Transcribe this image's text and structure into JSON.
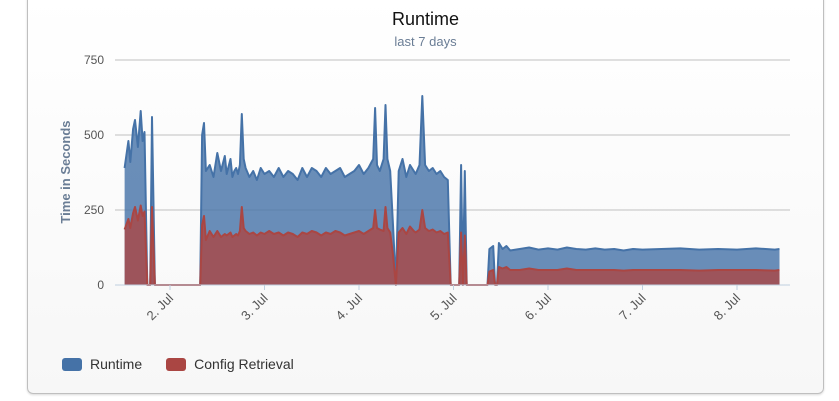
{
  "chart_data": {
    "type": "area",
    "title": "Runtime",
    "subtitle": "last 7 days",
    "xlabel": "",
    "ylabel": "Time in Seconds",
    "ylim": [
      0,
      750
    ],
    "yticks": [
      0,
      250,
      500,
      750
    ],
    "xlim": [
      1.5,
      8.5
    ],
    "xticks": [
      {
        "value": 2,
        "label": "2. Jul"
      },
      {
        "value": 3,
        "label": "3. Jul"
      },
      {
        "value": 4,
        "label": "4. Jul"
      },
      {
        "value": 5,
        "label": "5. Jul"
      },
      {
        "value": 6,
        "label": "6. Jul"
      },
      {
        "value": 7,
        "label": "7. Jul"
      },
      {
        "value": 8,
        "label": "8. Jul"
      }
    ],
    "stacked": true,
    "series": [
      {
        "name": "Config Retrieval",
        "color": "#aa4643",
        "points": [
          [
            1.52,
            185
          ],
          [
            1.56,
            220
          ],
          [
            1.58,
            190
          ],
          [
            1.61,
            240
          ],
          [
            1.63,
            260
          ],
          [
            1.66,
            215
          ],
          [
            1.69,
            265
          ],
          [
            1.71,
            230
          ],
          [
            1.73,
            245
          ],
          [
            1.76,
            0
          ],
          [
            1.79,
            0
          ],
          [
            1.81,
            260
          ],
          [
            1.84,
            0
          ],
          [
            1.9,
            0
          ],
          [
            2.0,
            0
          ],
          [
            2.2,
            0
          ],
          [
            2.3,
            0
          ],
          [
            2.32,
            0
          ],
          [
            2.34,
            200
          ],
          [
            2.36,
            230
          ],
          [
            2.38,
            150
          ],
          [
            2.42,
            180
          ],
          [
            2.46,
            160
          ],
          [
            2.5,
            180
          ],
          [
            2.54,
            160
          ],
          [
            2.58,
            170
          ],
          [
            2.6,
            165
          ],
          [
            2.64,
            175
          ],
          [
            2.66,
            160
          ],
          [
            2.68,
            165
          ],
          [
            2.7,
            170
          ],
          [
            2.72,
            165
          ],
          [
            2.74,
            180
          ],
          [
            2.76,
            260
          ],
          [
            2.78,
            190
          ],
          [
            2.8,
            180
          ],
          [
            2.84,
            170
          ],
          [
            2.88,
            175
          ],
          [
            2.92,
            165
          ],
          [
            2.96,
            175
          ],
          [
            3.0,
            170
          ],
          [
            3.05,
            180
          ],
          [
            3.1,
            170
          ],
          [
            3.15,
            175
          ],
          [
            3.2,
            165
          ],
          [
            3.25,
            175
          ],
          [
            3.3,
            170
          ],
          [
            3.35,
            160
          ],
          [
            3.4,
            175
          ],
          [
            3.45,
            170
          ],
          [
            3.5,
            180
          ],
          [
            3.55,
            175
          ],
          [
            3.6,
            165
          ],
          [
            3.65,
            175
          ],
          [
            3.7,
            170
          ],
          [
            3.75,
            180
          ],
          [
            3.8,
            175
          ],
          [
            3.85,
            165
          ],
          [
            3.9,
            170
          ],
          [
            3.95,
            175
          ],
          [
            4.0,
            180
          ],
          [
            4.05,
            170
          ],
          [
            4.1,
            180
          ],
          [
            4.15,
            190
          ],
          [
            4.17,
            250
          ],
          [
            4.19,
            190
          ],
          [
            4.22,
            185
          ],
          [
            4.26,
            180
          ],
          [
            4.28,
            260
          ],
          [
            4.3,
            190
          ],
          [
            4.33,
            175
          ],
          [
            4.36,
            100
          ],
          [
            4.39,
            0
          ],
          [
            4.42,
            175
          ],
          [
            4.46,
            190
          ],
          [
            4.5,
            170
          ],
          [
            4.54,
            195
          ],
          [
            4.58,
            180
          ],
          [
            4.6,
            175
          ],
          [
            4.64,
            185
          ],
          [
            4.67,
            250
          ],
          [
            4.7,
            190
          ],
          [
            4.74,
            180
          ],
          [
            4.78,
            185
          ],
          [
            4.82,
            175
          ],
          [
            4.86,
            180
          ],
          [
            4.9,
            170
          ],
          [
            4.94,
            175
          ],
          [
            4.97,
            0
          ],
          [
            5.0,
            0
          ],
          [
            5.03,
            0
          ],
          [
            5.06,
            0
          ],
          [
            5.08,
            175
          ],
          [
            5.1,
            0
          ],
          [
            5.12,
            165
          ],
          [
            5.14,
            0
          ],
          [
            5.2,
            0
          ],
          [
            5.3,
            0
          ],
          [
            5.36,
            0
          ],
          [
            5.38,
            45
          ],
          [
            5.42,
            50
          ],
          [
            5.44,
            0
          ],
          [
            5.46,
            0
          ],
          [
            5.48,
            60
          ],
          [
            5.52,
            55
          ],
          [
            5.56,
            60
          ],
          [
            5.6,
            50
          ],
          [
            5.7,
            50
          ],
          [
            5.8,
            55
          ],
          [
            5.9,
            50
          ],
          [
            6.0,
            50
          ],
          [
            6.1,
            50
          ],
          [
            6.2,
            55
          ],
          [
            6.3,
            50
          ],
          [
            6.4,
            50
          ],
          [
            6.5,
            50
          ],
          [
            6.6,
            50
          ],
          [
            6.7,
            50
          ],
          [
            6.8,
            48
          ],
          [
            6.9,
            50
          ],
          [
            7.0,
            50
          ],
          [
            7.2,
            50
          ],
          [
            7.4,
            50
          ],
          [
            7.6,
            48
          ],
          [
            7.8,
            50
          ],
          [
            8.0,
            50
          ],
          [
            8.2,
            50
          ],
          [
            8.4,
            48
          ],
          [
            8.45,
            50
          ]
        ]
      },
      {
        "name": "Runtime",
        "color": "#4572a7",
        "points": [
          [
            1.52,
            390
          ],
          [
            1.56,
            480
          ],
          [
            1.58,
            410
          ],
          [
            1.61,
            520
          ],
          [
            1.63,
            550
          ],
          [
            1.66,
            460
          ],
          [
            1.69,
            580
          ],
          [
            1.71,
            480
          ],
          [
            1.73,
            510
          ],
          [
            1.76,
            0
          ],
          [
            1.79,
            0
          ],
          [
            1.81,
            560
          ],
          [
            1.84,
            0
          ],
          [
            1.9,
            0
          ],
          [
            2.0,
            0
          ],
          [
            2.2,
            0
          ],
          [
            2.3,
            0
          ],
          [
            2.32,
            0
          ],
          [
            2.34,
            500
          ],
          [
            2.36,
            540
          ],
          [
            2.38,
            380
          ],
          [
            2.42,
            400
          ],
          [
            2.46,
            360
          ],
          [
            2.5,
            440
          ],
          [
            2.54,
            380
          ],
          [
            2.58,
            430
          ],
          [
            2.6,
            370
          ],
          [
            2.64,
            420
          ],
          [
            2.66,
            360
          ],
          [
            2.68,
            380
          ],
          [
            2.7,
            390
          ],
          [
            2.72,
            370
          ],
          [
            2.74,
            400
          ],
          [
            2.76,
            570
          ],
          [
            2.78,
            420
          ],
          [
            2.8,
            390
          ],
          [
            2.84,
            360
          ],
          [
            2.88,
            380
          ],
          [
            2.92,
            350
          ],
          [
            2.96,
            390
          ],
          [
            3.0,
            370
          ],
          [
            3.05,
            380
          ],
          [
            3.1,
            360
          ],
          [
            3.15,
            390
          ],
          [
            3.2,
            360
          ],
          [
            3.25,
            380
          ],
          [
            3.3,
            370
          ],
          [
            3.35,
            350
          ],
          [
            3.4,
            390
          ],
          [
            3.45,
            360
          ],
          [
            3.5,
            390
          ],
          [
            3.55,
            380
          ],
          [
            3.6,
            360
          ],
          [
            3.65,
            390
          ],
          [
            3.7,
            370
          ],
          [
            3.75,
            380
          ],
          [
            3.8,
            390
          ],
          [
            3.85,
            360
          ],
          [
            3.9,
            370
          ],
          [
            3.95,
            380
          ],
          [
            4.0,
            400
          ],
          [
            4.05,
            370
          ],
          [
            4.1,
            390
          ],
          [
            4.15,
            420
          ],
          [
            4.17,
            590
          ],
          [
            4.19,
            400
          ],
          [
            4.22,
            380
          ],
          [
            4.26,
            420
          ],
          [
            4.28,
            600
          ],
          [
            4.3,
            420
          ],
          [
            4.33,
            380
          ],
          [
            4.36,
            200
          ],
          [
            4.39,
            0
          ],
          [
            4.42,
            380
          ],
          [
            4.46,
            420
          ],
          [
            4.5,
            360
          ],
          [
            4.54,
            400
          ],
          [
            4.58,
            380
          ],
          [
            4.6,
            370
          ],
          [
            4.64,
            400
          ],
          [
            4.67,
            630
          ],
          [
            4.7,
            400
          ],
          [
            4.74,
            380
          ],
          [
            4.78,
            390
          ],
          [
            4.82,
            370
          ],
          [
            4.86,
            380
          ],
          [
            4.9,
            360
          ],
          [
            4.94,
            350
          ],
          [
            4.97,
            0
          ],
          [
            5.0,
            0
          ],
          [
            5.03,
            0
          ],
          [
            5.06,
            0
          ],
          [
            5.08,
            400
          ],
          [
            5.1,
            0
          ],
          [
            5.12,
            380
          ],
          [
            5.14,
            0
          ],
          [
            5.2,
            0
          ],
          [
            5.3,
            0
          ],
          [
            5.36,
            0
          ],
          [
            5.38,
            120
          ],
          [
            5.42,
            130
          ],
          [
            5.44,
            0
          ],
          [
            5.46,
            0
          ],
          [
            5.48,
            140
          ],
          [
            5.52,
            120
          ],
          [
            5.56,
            130
          ],
          [
            5.6,
            115
          ],
          [
            5.7,
            120
          ],
          [
            5.8,
            125
          ],
          [
            5.9,
            118
          ],
          [
            6.0,
            122
          ],
          [
            6.1,
            118
          ],
          [
            6.2,
            125
          ],
          [
            6.3,
            120
          ],
          [
            6.4,
            118
          ],
          [
            6.5,
            122
          ],
          [
            6.6,
            118
          ],
          [
            6.7,
            120
          ],
          [
            6.8,
            115
          ],
          [
            6.9,
            120
          ],
          [
            7.0,
            118
          ],
          [
            7.2,
            120
          ],
          [
            7.4,
            122
          ],
          [
            7.6,
            118
          ],
          [
            7.8,
            120
          ],
          [
            8.0,
            118
          ],
          [
            8.2,
            122
          ],
          [
            8.4,
            118
          ],
          [
            8.45,
            120
          ]
        ]
      }
    ],
    "legend": [
      {
        "name": "Runtime",
        "color": "#4572a7"
      },
      {
        "name": "Config Retrieval",
        "color": "#aa4643"
      }
    ],
    "legend_position": "bottom-left",
    "grid": true
  }
}
